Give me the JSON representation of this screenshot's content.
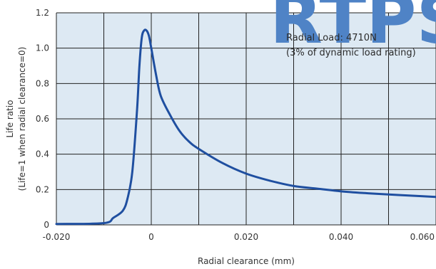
{
  "chart_data": {
    "type": "line",
    "title": "",
    "xlabel": "Radial clearance (mm)",
    "ylabel_lines": [
      "Life ratio",
      "(Life=1 when radial clearance=0)"
    ],
    "xlim": [
      -0.02,
      0.06
    ],
    "ylim": [
      0,
      1.2
    ],
    "x_ticks": [
      -0.02,
      -0.01,
      0,
      0.01,
      0.02,
      0.03,
      0.04,
      0.05,
      0.06
    ],
    "x_tick_labels": [
      "-0.020",
      "",
      "0",
      "",
      "0.020",
      "",
      "0.040",
      "",
      "0.060"
    ],
    "y_ticks": [
      0,
      0.2,
      0.4,
      0.6,
      0.8,
      1.0,
      1.2
    ],
    "y_tick_labels": [
      "0",
      "0.2",
      "0.4",
      "0.6",
      "0.8",
      "1.0",
      "1.2"
    ],
    "grid": true,
    "annotation": [
      "Radial Load: 4710N",
      "(3% of dynamic load rating)"
    ],
    "watermark": "RTPS",
    "colors": {
      "line": "#1f4fa0",
      "plot_bg": "#dde9f3",
      "grid": "#222222",
      "watermark": "#4f83c6"
    },
    "series": [
      {
        "x": [
          -0.02,
          -0.01,
          -0.008,
          -0.006,
          -0.005,
          -0.004,
          -0.003,
          -0.0025,
          -0.002,
          -0.0015,
          -0.001,
          -0.0005,
          0,
          0.001,
          0.002,
          0.004,
          0.006,
          0.008,
          0.01,
          0.015,
          0.02,
          0.025,
          0.03,
          0.035,
          0.04,
          0.045,
          0.05,
          0.055,
          0.06
        ],
        "y": [
          0.005,
          0.01,
          0.04,
          0.08,
          0.15,
          0.3,
          0.65,
          0.9,
          1.06,
          1.1,
          1.1,
          1.07,
          1.0,
          0.85,
          0.73,
          0.62,
          0.53,
          0.47,
          0.43,
          0.35,
          0.29,
          0.25,
          0.22,
          0.205,
          0.19,
          0.18,
          0.172,
          0.165,
          0.158
        ]
      }
    ]
  }
}
